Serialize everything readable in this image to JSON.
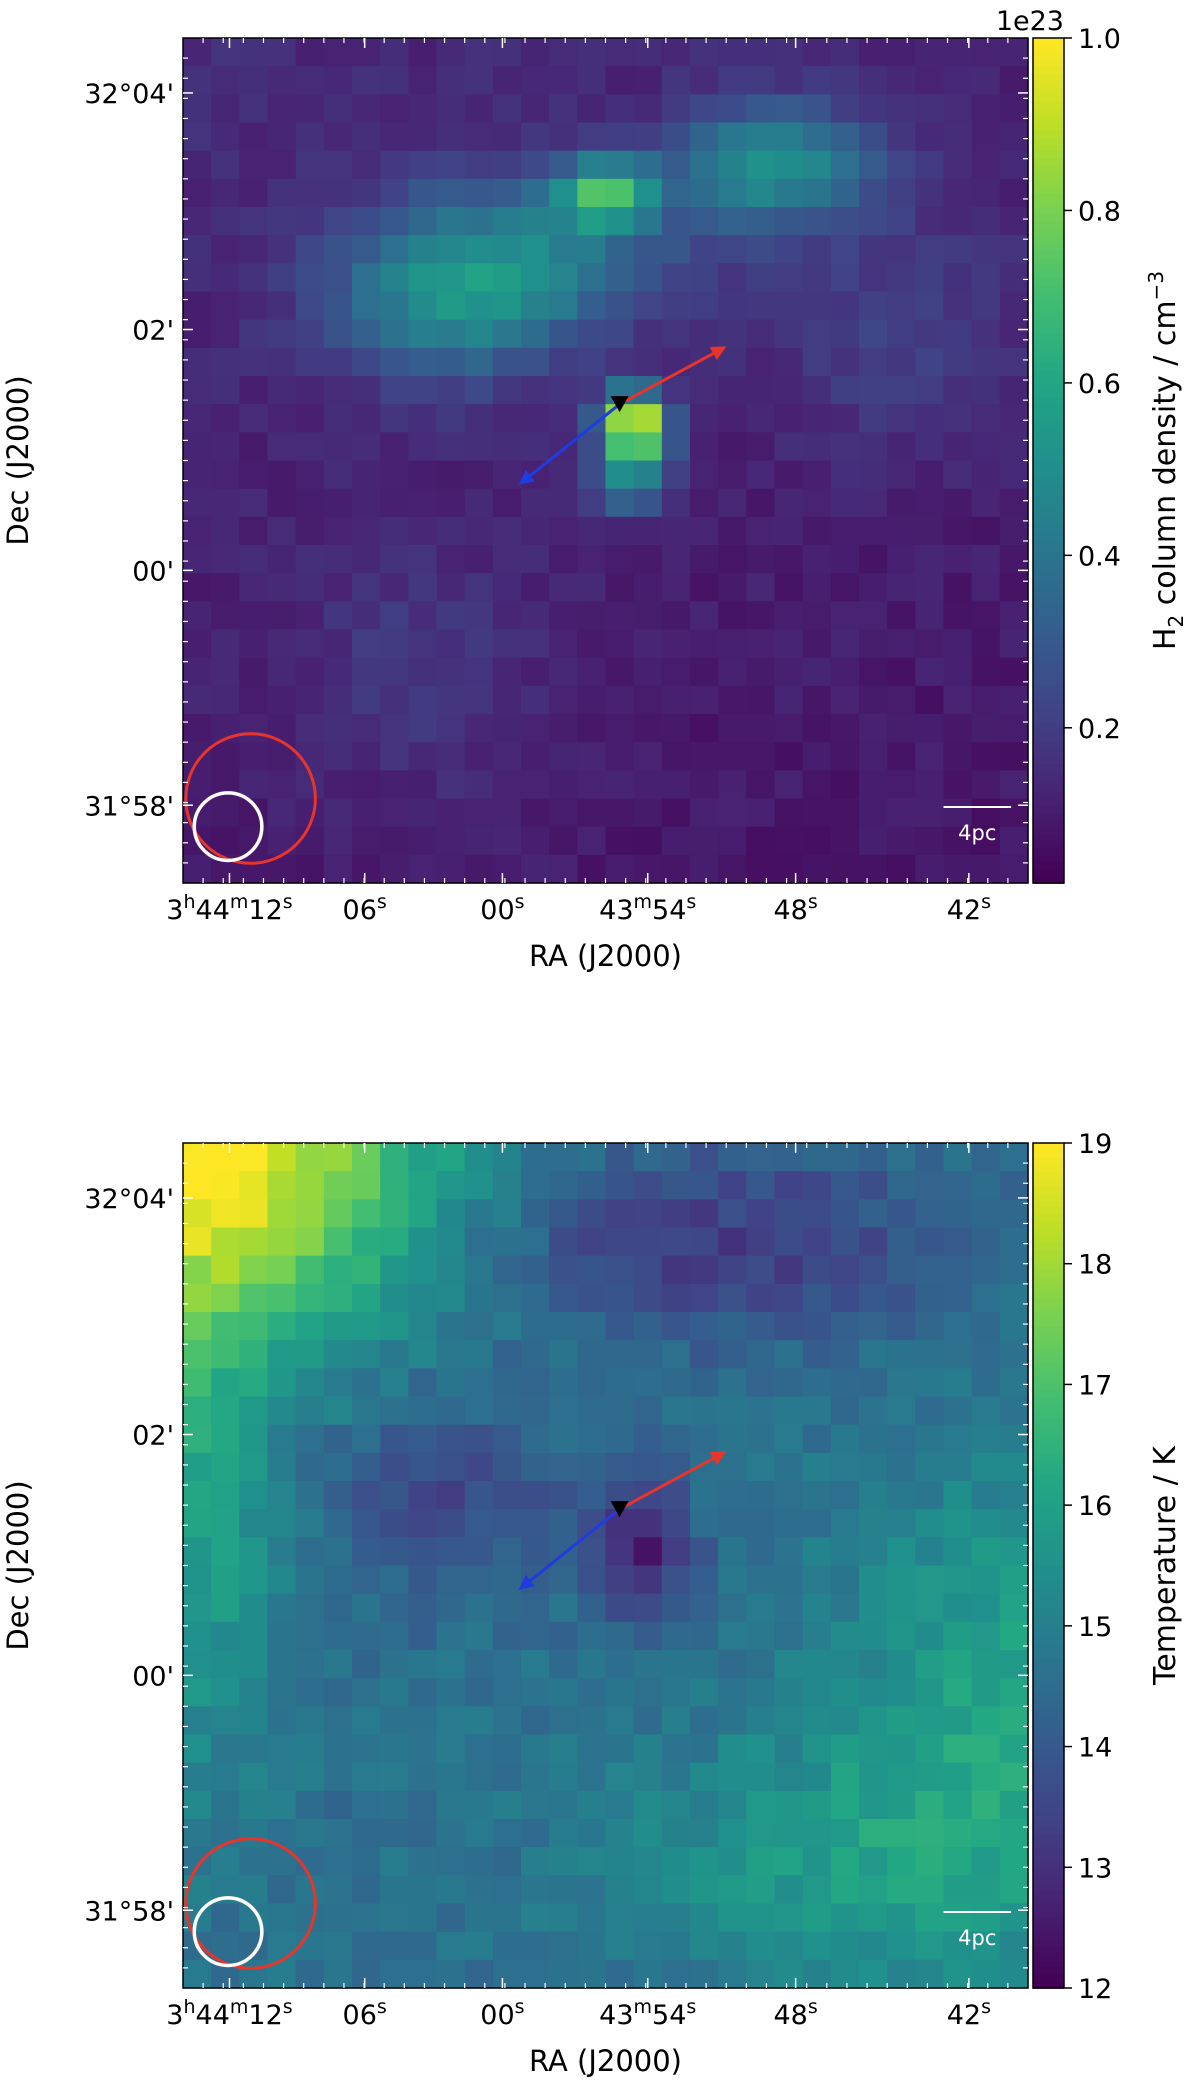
{
  "chart_data": [
    {
      "type": "heatmap",
      "panel": "top",
      "quantity": "H2 column density",
      "colorbar": {
        "label_main": "H",
        "label_sub": "2",
        "label_rest": " column density / cm",
        "label_sup": "−3",
        "offset_text": "1e23",
        "range": [
          0.02,
          1.0
        ],
        "tick_values": [
          0.2,
          0.4,
          0.6,
          0.8,
          1.0
        ],
        "tick_labels": [
          "0.2",
          "0.4",
          "0.6",
          "0.8",
          "1.0"
        ],
        "colormap": "viridis"
      },
      "x_axis": {
        "label": "RA (J2000)",
        "ticks": [
          {
            "parts": [
              [
                "3",
                "n"
              ],
              [
                "h",
                "s"
              ],
              [
                "44",
                "n"
              ],
              [
                "m",
                "s"
              ],
              [
                "12",
                "n"
              ],
              [
                "s",
                "s"
              ]
            ]
          },
          {
            "parts": [
              [
                "06",
                "n"
              ],
              [
                "s",
                "s"
              ]
            ]
          },
          {
            "parts": [
              [
                "00",
                "n"
              ],
              [
                "s",
                "s"
              ]
            ]
          },
          {
            "parts": [
              [
                "43",
                "n"
              ],
              [
                "m",
                "s"
              ],
              [
                "54",
                "n"
              ],
              [
                "s",
                "s"
              ]
            ]
          },
          {
            "parts": [
              [
                "48",
                "n"
              ],
              [
                "s",
                "s"
              ]
            ]
          },
          {
            "parts": [
              [
                "42",
                "n"
              ],
              [
                "s",
                "s"
              ]
            ]
          }
        ]
      },
      "y_axis": {
        "label": "Dec (J2000)",
        "ticks": [
          "31°58'",
          "00'",
          "02'",
          "32°04'"
        ]
      },
      "scale_bar_label": "4pc",
      "grid_size": [
        30,
        30
      ],
      "field_model": {
        "background": 0.1,
        "gradient": {
          "x": -0.02,
          "y": 0.04
        },
        "blobs": [
          {
            "cx": 15.5,
            "cy": 13.2,
            "amp": 0.85,
            "sx": 0.8,
            "sy": 0.8
          },
          {
            "cx": 15.5,
            "cy": 15.0,
            "amp": 0.35,
            "sx": 1.0,
            "sy": 1.0
          },
          {
            "cx": 14.5,
            "cy": 5.0,
            "amp": 0.5,
            "sx": 1.2,
            "sy": 0.8
          },
          {
            "cx": 20.5,
            "cy": 4.0,
            "amp": 0.38,
            "sx": 2.5,
            "sy": 1.5
          },
          {
            "cx": 9.0,
            "cy": 9.0,
            "amp": 0.3,
            "sx": 3.0,
            "sy": 2.0
          },
          {
            "cx": 12.0,
            "cy": 7.0,
            "amp": 0.25,
            "sx": 4.0,
            "sy": 2.0
          },
          {
            "cx": 8.0,
            "cy": 22.0,
            "amp": 0.08,
            "sx": 3.0,
            "sy": 3.0
          },
          {
            "cx": 25.0,
            "cy": 10.0,
            "amp": 0.1,
            "sx": 3.0,
            "sy": 3.0
          }
        ],
        "noise": 0.03
      },
      "markers": {
        "source": {
          "x": 15.5,
          "y": 13.0,
          "shape": "down-triangle",
          "color": "#000000"
        },
        "outflow_red": {
          "to_x": 19.2,
          "to_y": 11.0,
          "color": "#e8352b"
        },
        "outflow_blue": {
          "to_x": 12.0,
          "to_y": 15.8,
          "color": "#1f3cde"
        },
        "beam_large": {
          "x": 2.4,
          "y": 27.0,
          "r": 2.3,
          "color": "#e8352b"
        },
        "beam_small": {
          "x": 1.6,
          "y": 28.0,
          "r": 1.2,
          "color": "#ffffff"
        }
      }
    },
    {
      "type": "heatmap",
      "panel": "bottom",
      "quantity": "Temperature",
      "colorbar": {
        "label_main": "Temperature / K",
        "label_sub": "",
        "label_rest": "",
        "label_sup": "",
        "offset_text": "",
        "range": [
          12,
          19
        ],
        "tick_values": [
          12,
          13,
          14,
          15,
          16,
          17,
          18,
          19
        ],
        "tick_labels": [
          "12",
          "13",
          "14",
          "15",
          "16",
          "17",
          "18",
          "19"
        ],
        "colormap": "viridis"
      },
      "x_axis": {
        "label": "RA (J2000)",
        "ticks": [
          {
            "parts": [
              [
                "3",
                "n"
              ],
              [
                "h",
                "s"
              ],
              [
                "44",
                "n"
              ],
              [
                "m",
                "s"
              ],
              [
                "12",
                "n"
              ],
              [
                "s",
                "s"
              ]
            ]
          },
          {
            "parts": [
              [
                "06",
                "n"
              ],
              [
                "s",
                "s"
              ]
            ]
          },
          {
            "parts": [
              [
                "00",
                "n"
              ],
              [
                "s",
                "s"
              ]
            ]
          },
          {
            "parts": [
              [
                "43",
                "n"
              ],
              [
                "m",
                "s"
              ],
              [
                "54",
                "n"
              ],
              [
                "s",
                "s"
              ]
            ]
          },
          {
            "parts": [
              [
                "48",
                "n"
              ],
              [
                "s",
                "s"
              ]
            ]
          },
          {
            "parts": [
              [
                "42",
                "n"
              ],
              [
                "s",
                "s"
              ]
            ]
          }
        ]
      },
      "y_axis": {
        "label": "Dec (J2000)",
        "ticks": [
          "31°58'",
          "00'",
          "02'",
          "32°04'"
        ]
      },
      "scale_bar_label": "4pc",
      "grid_size": [
        30,
        30
      ],
      "field_model": {
        "background": 14.6,
        "gradient": {
          "x": 0.0,
          "y": 0.0
        },
        "blobs": [
          {
            "cx": 0.0,
            "cy": 0.0,
            "amp": 4.4,
            "sx": 6.0,
            "sy": 4.5
          },
          {
            "cx": 30.0,
            "cy": 20.0,
            "amp": 1.6,
            "sx": 5.0,
            "sy": 6.0
          },
          {
            "cx": 22.0,
            "cy": 25.0,
            "amp": 1.0,
            "sx": 5.0,
            "sy": 3.0
          },
          {
            "cx": 16.0,
            "cy": 14.0,
            "amp": -2.0,
            "sx": 1.2,
            "sy": 1.8
          },
          {
            "cx": 18.0,
            "cy": 3.0,
            "amp": -1.4,
            "sx": 6.0,
            "sy": 2.5
          },
          {
            "cx": 9.0,
            "cy": 12.0,
            "amp": -1.1,
            "sx": 3.0,
            "sy": 2.5
          },
          {
            "cx": 0.0,
            "cy": 13.0,
            "amp": 1.4,
            "sx": 2.0,
            "sy": 6.0
          }
        ],
        "noise": 0.35
      },
      "markers": {
        "source": {
          "x": 15.5,
          "y": 13.0,
          "shape": "down-triangle",
          "color": "#000000"
        },
        "outflow_red": {
          "to_x": 19.2,
          "to_y": 11.0,
          "color": "#e8352b"
        },
        "outflow_blue": {
          "to_x": 12.0,
          "to_y": 15.8,
          "color": "#1f3cde"
        },
        "beam_large": {
          "x": 2.4,
          "y": 27.0,
          "r": 2.3,
          "color": "#e8352b"
        },
        "beam_small": {
          "x": 1.6,
          "y": 28.0,
          "r": 1.2,
          "color": "#ffffff"
        }
      }
    }
  ]
}
